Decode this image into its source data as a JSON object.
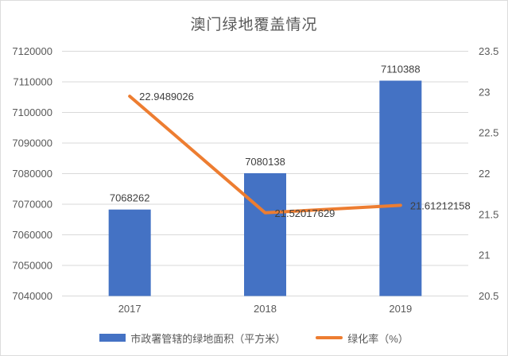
{
  "title": "澳门绿地覆盖情况",
  "colors": {
    "bar": "#4472C4",
    "line": "#ED7D31",
    "grid": "#D9D9D9",
    "axis_text": "#595959",
    "data_label_text": "#404040",
    "background": "#FFFFFF"
  },
  "chart_data": {
    "type": "bar+line combo, dual axis",
    "title": "澳门绿地覆盖情况",
    "categories": [
      "2017",
      "2018",
      "2019"
    ],
    "series": [
      {
        "name": "市政署管辖的绿地面积（平方米）",
        "type": "bar",
        "axis": "left",
        "color": "#4472C4",
        "values": [
          7068262,
          7080138,
          7110388
        ],
        "labels": [
          "7068262",
          "7080138",
          "7110388"
        ]
      },
      {
        "name": "绿化率（%）",
        "type": "line",
        "axis": "right",
        "color": "#ED7D31",
        "values": [
          22.9489026,
          21.52017629,
          21.61212158
        ],
        "labels": [
          "22.9489026",
          "21.52017629",
          "21.61212158"
        ]
      }
    ],
    "left_axis": {
      "min": 7040000,
      "max": 7120000,
      "step": 10000,
      "ticks": [
        "7120000",
        "7110000",
        "7100000",
        "7090000",
        "7080000",
        "7070000",
        "7060000",
        "7050000",
        "7040000"
      ]
    },
    "right_axis": {
      "min": 20.5,
      "max": 23.5,
      "step": 0.5,
      "ticks": [
        "23.5",
        "23",
        "22.5",
        "22",
        "21.5",
        "21",
        "20.5"
      ]
    },
    "grid": true,
    "legend_position": "bottom"
  },
  "legend": {
    "items": [
      {
        "label": "市政署管辖的绿地面积（平方米）",
        "marker": "bar-swatch"
      },
      {
        "label": "绿化率（%）",
        "marker": "line-swatch"
      }
    ]
  }
}
